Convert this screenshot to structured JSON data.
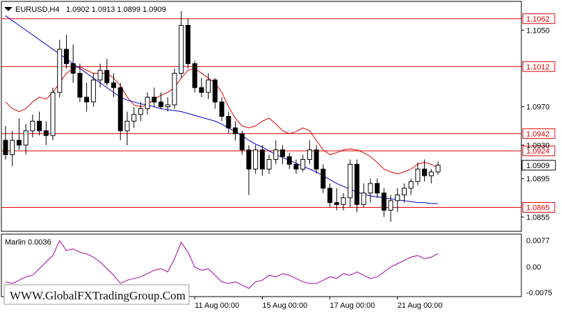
{
  "header": {
    "symbol_tf": "EURUSD,H4",
    "ohlc": "1.0902 1.0913 1.0899 1.0909"
  },
  "oscillator": {
    "label": "Marlin 0.0036",
    "ticks": [
      "0.0077",
      "0.00",
      "-0.0075"
    ]
  },
  "watermark": "WWW.GlobalFXTradingGroup.Com",
  "chart_data": {
    "type": "candlestick",
    "symbol": "EURUSD",
    "timeframe": "H4",
    "price_axis_ticks": [
      "1.1050",
      "1.0970",
      "1.0930",
      "1.0895",
      "1.0855"
    ],
    "time_axis_labels": [
      "11 Aug 00:00",
      "15 Aug 00:00",
      "17 Aug 00:00",
      "21 Aug 00:00"
    ],
    "ylim": [
      1.084,
      1.108
    ],
    "levels": [
      {
        "value": 1.1062,
        "label": "1.1062",
        "color": "#e00000"
      },
      {
        "value": 1.1012,
        "label": "1.1012",
        "color": "#e00000"
      },
      {
        "value": 1.0942,
        "label": "1.0942",
        "color": "#e00000"
      },
      {
        "value": 1.0924,
        "label": "1.0924",
        "color": "#e00000"
      },
      {
        "value": 1.0865,
        "label": "1.0865",
        "color": "#e00000"
      }
    ],
    "current_price": "1.0909",
    "candles": [
      [
        1.0935,
        1.095,
        1.0915,
        1.092
      ],
      [
        1.092,
        1.0945,
        1.0908,
        1.0935
      ],
      [
        1.0935,
        1.0958,
        1.0925,
        1.093
      ],
      [
        1.093,
        1.0952,
        1.092,
        1.0945
      ],
      [
        1.0945,
        1.0962,
        1.0938,
        1.0955
      ],
      [
        1.0955,
        1.0965,
        1.094,
        1.0945
      ],
      [
        1.0945,
        1.0955,
        1.093,
        1.094
      ],
      [
        1.094,
        1.099,
        1.0935,
        1.0985
      ],
      [
        1.0985,
        1.104,
        1.098,
        1.103
      ],
      [
        1.103,
        1.1045,
        1.101,
        1.1015
      ],
      [
        1.1015,
        1.1035,
        1.0995,
        1.1005
      ],
      [
        1.1005,
        1.1015,
        1.0975,
        1.098
      ],
      [
        1.098,
        1.0995,
        1.0965,
        1.0975
      ],
      [
        1.0975,
        1.1005,
        1.097,
        1.0998
      ],
      [
        1.0998,
        1.1015,
        1.099,
        1.1008
      ],
      [
        1.1008,
        1.102,
        1.0992,
        1.0995
      ],
      [
        1.0995,
        1.1005,
        1.098,
        1.099
      ],
      [
        1.099,
        1.0995,
        1.0935,
        1.0945
      ],
      [
        1.0945,
        1.0965,
        1.093,
        1.0955
      ],
      [
        1.0955,
        1.097,
        1.0948,
        1.0962
      ],
      [
        1.0962,
        1.0975,
        1.0955,
        1.0968
      ],
      [
        1.0968,
        1.0985,
        1.0962,
        1.098
      ],
      [
        1.098,
        1.099,
        1.097,
        1.0975
      ],
      [
        1.0975,
        1.0985,
        1.0968,
        1.097
      ],
      [
        1.097,
        1.098,
        1.0965,
        1.0972
      ],
      [
        1.0972,
        1.101,
        1.0968,
        1.1005
      ],
      [
        1.1005,
        1.107,
        1.1,
        1.1055
      ],
      [
        1.1055,
        1.1062,
        1.101,
        1.1015
      ],
      [
        1.1015,
        1.1018,
        1.0985,
        1.099
      ],
      [
        1.099,
        1.1,
        1.098,
        1.0985
      ],
      [
        1.0985,
        1.1005,
        1.0978,
        1.0998
      ],
      [
        1.0998,
        1.1,
        1.0968,
        1.0975
      ],
      [
        1.0975,
        1.098,
        1.0955,
        1.096
      ],
      [
        1.096,
        1.0965,
        1.0942,
        1.0948
      ],
      [
        1.0948,
        1.0955,
        1.0935,
        1.0942
      ],
      [
        1.0942,
        1.0945,
        1.092,
        1.0925
      ],
      [
        1.0925,
        1.093,
        1.0878,
        1.0905
      ],
      [
        1.0905,
        1.093,
        1.09,
        1.0925
      ],
      [
        1.0925,
        1.093,
        1.0898,
        1.0905
      ],
      [
        1.0905,
        1.092,
        1.09,
        1.0915
      ],
      [
        1.0915,
        1.0935,
        1.091,
        1.0925
      ],
      [
        1.0925,
        1.093,
        1.091,
        1.0918
      ],
      [
        1.0918,
        1.0922,
        1.0905,
        1.091
      ],
      [
        1.091,
        1.0915,
        1.09,
        1.0905
      ],
      [
        1.0905,
        1.092,
        1.0902,
        1.0915
      ],
      [
        1.0915,
        1.0935,
        1.091,
        1.0925
      ],
      [
        1.0925,
        1.093,
        1.09,
        1.0905
      ],
      [
        1.0905,
        1.091,
        1.088,
        1.0885
      ],
      [
        1.0885,
        1.089,
        1.0865,
        1.087
      ],
      [
        1.087,
        1.0885,
        1.0862,
        1.0868
      ],
      [
        1.0868,
        1.088,
        1.0862,
        1.0875
      ],
      [
        1.0875,
        1.0915,
        1.0865,
        1.091
      ],
      [
        1.091,
        1.0915,
        1.086,
        1.0868
      ],
      [
        1.0868,
        1.089,
        1.0865,
        1.088
      ],
      [
        1.088,
        1.0895,
        1.087,
        1.089
      ],
      [
        1.089,
        1.0895,
        1.0875,
        1.088
      ],
      [
        1.088,
        1.0885,
        1.0855,
        1.0862
      ],
      [
        1.0862,
        1.0878,
        1.085,
        1.0872
      ],
      [
        1.0872,
        1.0885,
        1.086,
        1.0878
      ],
      [
        1.0878,
        1.089,
        1.087,
        1.0885
      ],
      [
        1.0885,
        1.0895,
        1.0878,
        1.0892
      ],
      [
        1.0892,
        1.0912,
        1.0888,
        1.0905
      ],
      [
        1.0905,
        1.0915,
        1.0892,
        1.0898
      ],
      [
        1.0898,
        1.0905,
        1.089,
        1.0902
      ],
      [
        1.0902,
        1.0913,
        1.0899,
        1.0909
      ]
    ],
    "ma_red": [
      1.0975,
      1.0968,
      1.0965,
      1.0968,
      1.0975,
      1.098,
      1.0978,
      1.0985,
      1.0995,
      1.1005,
      1.101,
      1.1012,
      1.1008,
      1.1005,
      1.1005,
      1.1005,
      1.1,
      1.0992,
      1.098,
      1.0972,
      1.097,
      1.0972,
      1.0978,
      1.0982,
      1.0985,
      1.099,
      1.1,
      1.1008,
      1.101,
      1.1005,
      1.1,
      1.0995,
      1.0985,
      1.097,
      1.0958,
      1.095,
      1.0948,
      1.095,
      1.0955,
      1.0958,
      1.0952,
      1.0945,
      1.0942,
      1.0944,
      1.0948,
      1.0945,
      1.0935,
      1.0925,
      1.092,
      1.0922,
      1.0925,
      1.0926,
      1.0925,
      1.0922,
      1.0918,
      1.0912,
      1.0905,
      1.0902,
      1.09,
      1.0902,
      1.0905,
      1.091,
      1.0912,
      1.091,
      1.0906
    ],
    "ma_blue": [
      1.1065,
      1.106,
      1.1055,
      1.105,
      1.1045,
      1.104,
      1.1035,
      1.103,
      1.1025,
      1.102,
      1.1015,
      1.101,
      1.1005,
      1.1,
      1.0995,
      1.099,
      1.0985,
      1.098,
      1.0977,
      1.0975,
      1.0973,
      1.0972,
      1.097,
      1.0968,
      1.0967,
      1.0966,
      1.0965,
      1.0963,
      1.0961,
      1.0959,
      1.0957,
      1.0955,
      1.0952,
      1.0948,
      1.0944,
      1.094,
      1.0935,
      1.0931,
      1.0928,
      1.0924,
      1.092,
      1.0917,
      1.0914,
      1.0911,
      1.0908,
      1.0905,
      1.0902,
      1.0898,
      1.0894,
      1.089,
      1.0887,
      1.0884,
      1.0881,
      1.0879,
      1.0877,
      1.0876,
      1.0875,
      1.0874,
      1.0873,
      1.0872,
      1.0871,
      1.087,
      1.087,
      1.0869,
      1.0869
    ],
    "oscillator_values": [
      -0.005,
      -0.0055,
      -0.0045,
      -0.0035,
      -0.003,
      -0.001,
      0.001,
      0.003,
      0.0075,
      0.0045,
      0.005,
      0.004,
      0.0035,
      0.0025,
      0.001,
      -0.001,
      -0.003,
      -0.0055,
      -0.0045,
      -0.004,
      -0.0035,
      -0.0025,
      -0.0015,
      -0.001,
      -0.002,
      0.002,
      0.007,
      0.004,
      -0.0005,
      -0.0015,
      -0.001,
      -0.003,
      -0.005,
      -0.0055,
      -0.005,
      -0.006,
      -0.007,
      -0.005,
      -0.0045,
      -0.003,
      -0.0035,
      -0.0025,
      -0.003,
      -0.004,
      -0.005,
      -0.0055,
      -0.0055,
      -0.0045,
      -0.0035,
      -0.004,
      -0.0025,
      -0.003,
      -0.002,
      -0.003,
      -0.004,
      -0.0035,
      -0.002,
      -0.0005,
      0.0005,
      0.0015,
      0.0025,
      0.003,
      0.002,
      0.0025,
      0.0036
    ]
  }
}
